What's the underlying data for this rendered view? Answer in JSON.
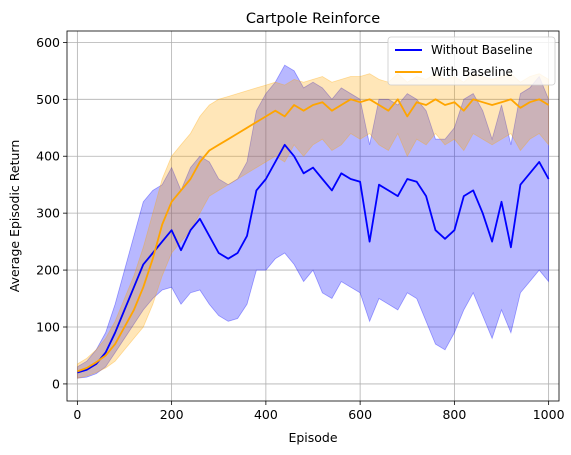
{
  "chart_data": {
    "type": "line",
    "title": "Cartpole Reinforce",
    "xlabel": "Episode",
    "ylabel": "Average Episodic Return",
    "xlim": [
      -22,
      1022
    ],
    "ylim": [
      -30,
      620
    ],
    "xticks": [
      0,
      200,
      400,
      600,
      800,
      1000
    ],
    "yticks": [
      0,
      100,
      200,
      300,
      400,
      500,
      600
    ],
    "grid": true,
    "legend_position": "top-right",
    "series": [
      {
        "name": "Without Baseline",
        "color": "#0000ff",
        "x": [
          0,
          20,
          40,
          60,
          80,
          100,
          120,
          140,
          160,
          180,
          200,
          220,
          240,
          260,
          280,
          300,
          320,
          340,
          360,
          380,
          400,
          420,
          440,
          460,
          480,
          500,
          520,
          540,
          560,
          580,
          600,
          620,
          640,
          660,
          680,
          700,
          720,
          740,
          760,
          780,
          800,
          820,
          840,
          860,
          880,
          900,
          920,
          940,
          960,
          980,
          1000
        ],
        "values": [
          20,
          25,
          35,
          55,
          90,
          130,
          170,
          210,
          230,
          250,
          270,
          235,
          270,
          290,
          260,
          230,
          220,
          230,
          260,
          340,
          360,
          390,
          420,
          400,
          370,
          380,
          360,
          340,
          370,
          360,
          355,
          250,
          350,
          340,
          330,
          360,
          355,
          330,
          270,
          255,
          270,
          330,
          340,
          300,
          250,
          320,
          240,
          350,
          370,
          390,
          360
        ],
        "lower": [
          10,
          12,
          18,
          30,
          55,
          80,
          105,
          130,
          150,
          165,
          170,
          140,
          160,
          165,
          140,
          120,
          110,
          115,
          140,
          200,
          200,
          220,
          230,
          210,
          180,
          200,
          160,
          150,
          180,
          170,
          160,
          110,
          150,
          140,
          130,
          160,
          150,
          110,
          70,
          60,
          90,
          130,
          160,
          120,
          80,
          130,
          90,
          160,
          180,
          200,
          180
        ],
        "upper": [
          30,
          40,
          60,
          90,
          140,
          200,
          260,
          320,
          340,
          350,
          380,
          340,
          380,
          400,
          390,
          360,
          350,
          360,
          390,
          480,
          510,
          530,
          560,
          550,
          520,
          530,
          520,
          500,
          520,
          510,
          500,
          420,
          500,
          500,
          490,
          510,
          500,
          480,
          430,
          430,
          450,
          500,
          510,
          480,
          430,
          490,
          420,
          510,
          520,
          540,
          500
        ]
      },
      {
        "name": "With Baseline",
        "color": "#ffa500",
        "x": [
          0,
          20,
          40,
          60,
          80,
          100,
          120,
          140,
          160,
          180,
          200,
          220,
          240,
          260,
          280,
          300,
          320,
          340,
          360,
          380,
          400,
          420,
          440,
          460,
          480,
          500,
          520,
          540,
          560,
          580,
          600,
          620,
          640,
          660,
          680,
          700,
          720,
          740,
          760,
          780,
          800,
          820,
          840,
          860,
          880,
          900,
          920,
          940,
          960,
          980,
          1000
        ],
        "values": [
          22,
          28,
          38,
          50,
          70,
          100,
          130,
          170,
          220,
          280,
          320,
          340,
          360,
          390,
          410,
          420,
          430,
          440,
          450,
          460,
          470,
          480,
          470,
          490,
          480,
          490,
          495,
          480,
          490,
          500,
          495,
          500,
          490,
          480,
          500,
          470,
          495,
          490,
          500,
          490,
          495,
          480,
          500,
          495,
          490,
          495,
          500,
          485,
          495,
          500,
          490
        ],
        "lower": [
          10,
          14,
          20,
          28,
          40,
          60,
          80,
          100,
          140,
          190,
          230,
          250,
          270,
          300,
          330,
          340,
          350,
          360,
          370,
          380,
          390,
          400,
          390,
          420,
          400,
          420,
          430,
          410,
          420,
          440,
          430,
          440,
          420,
          410,
          440,
          400,
          430,
          420,
          440,
          420,
          430,
          410,
          440,
          430,
          420,
          430,
          440,
          410,
          430,
          440,
          420
        ],
        "upper": [
          35,
          45,
          60,
          80,
          110,
          150,
          190,
          240,
          300,
          360,
          400,
          420,
          440,
          470,
          490,
          500,
          505,
          510,
          515,
          520,
          525,
          530,
          525,
          535,
          530,
          535,
          540,
          530,
          535,
          540,
          540,
          545,
          535,
          530,
          545,
          530,
          540,
          535,
          545,
          535,
          540,
          530,
          545,
          540,
          535,
          540,
          545,
          530,
          540,
          545,
          535
        ]
      }
    ]
  }
}
